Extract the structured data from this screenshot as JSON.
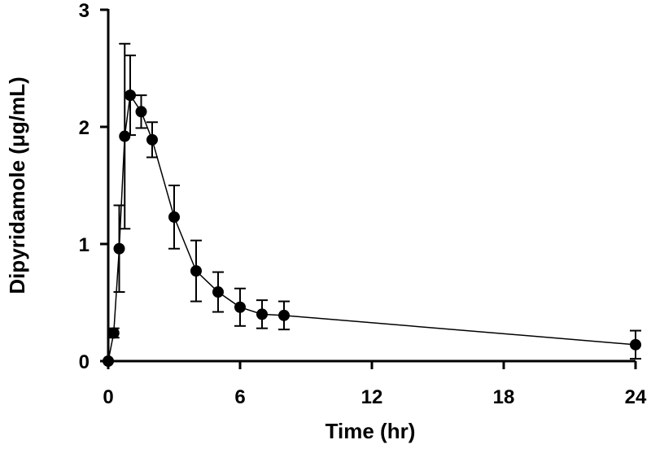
{
  "chart_data": {
    "type": "line",
    "title": "",
    "xlabel": "Time (hr)",
    "ylabel": "Dipyridamole (μg/mL)",
    "xlim": [
      0,
      24
    ],
    "ylim": [
      0,
      3
    ],
    "xticks": [
      0,
      6,
      12,
      18,
      24
    ],
    "yticks": [
      0,
      1,
      2,
      3
    ],
    "x_tick_labels": [
      "0",
      "6",
      "12",
      "18",
      "24"
    ],
    "y_tick_labels": [
      "0",
      "1",
      "2",
      "3"
    ],
    "grid": false,
    "legend": "none",
    "series": [
      {
        "x": [
          0,
          0.25,
          0.5,
          0.75,
          1,
          1.5,
          2,
          3,
          4,
          5,
          6,
          7,
          8,
          24
        ],
        "y": [
          0,
          0.24,
          0.96,
          1.92,
          2.27,
          2.13,
          1.89,
          1.23,
          0.77,
          0.59,
          0.46,
          0.4,
          0.39,
          0.14
        ],
        "error": [
          0,
          0.04,
          0.37,
          0.79,
          0.34,
          0.14,
          0.15,
          0.27,
          0.26,
          0.17,
          0.16,
          0.12,
          0.12,
          0.12
        ],
        "color": "#000000"
      }
    ]
  }
}
